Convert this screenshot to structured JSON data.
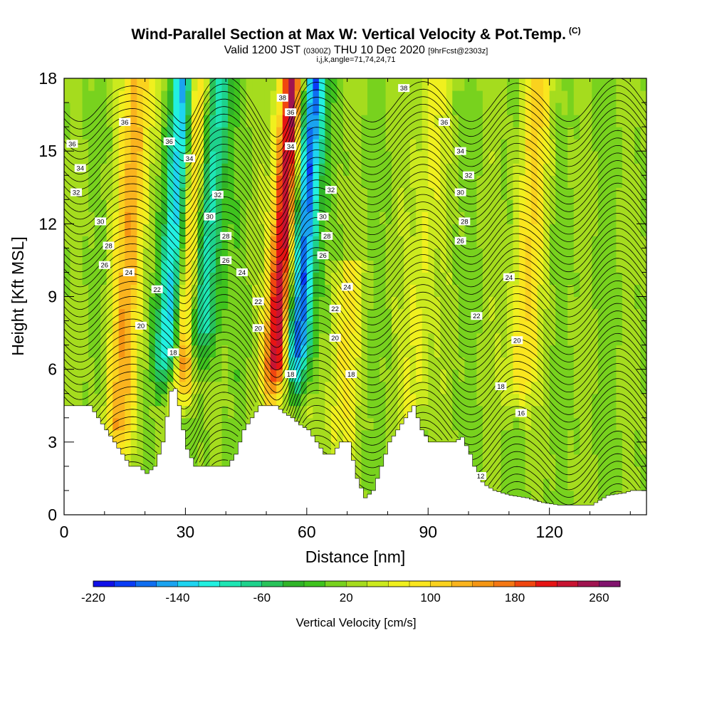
{
  "header": {
    "title": "Wind-Parallel Section at Max W: Vertical Velocity & Pot.Temp.",
    "copyright": "(C)",
    "valid_prefix": "Valid 1200 JST",
    "valid_utc": "(0300Z)",
    "valid_date": "THU 10 Dec 2020",
    "forecast": "[9hrFcst@2303z]",
    "indices": "i,j,k,angle=71,74,24,71"
  },
  "chart_data": {
    "type": "heatmap",
    "xlabel": "Distance [nm]",
    "ylabel": "Height [Kft MSL]",
    "xlim": [
      0,
      144
    ],
    "ylim": [
      0,
      18
    ],
    "x_ticks": [
      0,
      30,
      60,
      90,
      120
    ],
    "y_ticks": [
      0,
      3,
      6,
      9,
      12,
      15,
      18
    ],
    "colorbar": {
      "label": "Vertical Velocity [cm/s]",
      "min": -220,
      "max": 280,
      "step": 20,
      "tick_labels": [
        -220,
        -140,
        -60,
        20,
        100,
        180,
        260
      ],
      "colors": [
        "#1010e8",
        "#0a3cf5",
        "#0f6ef0",
        "#1aa3f0",
        "#1ed4f0",
        "#22f0e0",
        "#1ee6b4",
        "#1ed28c",
        "#28c35a",
        "#30b428",
        "#3fc31e",
        "#78d21e",
        "#a5dc1e",
        "#ccea1e",
        "#f0f01e",
        "#fae61e",
        "#fad21e",
        "#fab41e",
        "#f59614",
        "#f57814",
        "#f0460f",
        "#e61414",
        "#c81432",
        "#a01450",
        "#82146e",
        "#5a1478"
      ]
    },
    "updraft_cores": [
      {
        "x": 15.5,
        "w": 110,
        "top": 18,
        "bottom": 2
      },
      {
        "x": 30.5,
        "w": 190,
        "top": 18,
        "bottom": 4.5
      },
      {
        "x": 53.5,
        "w": 240,
        "top": 18,
        "bottom": 4.5
      },
      {
        "x": 70,
        "w": 60,
        "top": 10,
        "bottom": 2
      },
      {
        "x": 88,
        "w": 50,
        "top": 18,
        "bottom": 3
      },
      {
        "x": 114,
        "w": 80,
        "top": 18,
        "bottom": 4
      }
    ],
    "downdraft_cores": [
      {
        "x": 26.5,
        "w": -180,
        "top": 18,
        "bottom": 5
      },
      {
        "x": 34,
        "w": -150,
        "top": 18,
        "bottom": 6
      },
      {
        "x": 58.5,
        "w": -220,
        "top": 18,
        "bottom": 5
      }
    ],
    "terrain": {
      "x": [
        0,
        4,
        6,
        8,
        10,
        12,
        14,
        16,
        18,
        20,
        22,
        24,
        26,
        27,
        28,
        29,
        30,
        32,
        34,
        36,
        38,
        40,
        42,
        44,
        46,
        48,
        50,
        52,
        54,
        56,
        58,
        60,
        62,
        64,
        66,
        68,
        70,
        72,
        74,
        76,
        78,
        80,
        82,
        84,
        86,
        88,
        90,
        92,
        94,
        96,
        98,
        100,
        102,
        104,
        106,
        110,
        114,
        118,
        122,
        126,
        130,
        134,
        138,
        140,
        144
      ],
      "y": [
        4.5,
        4.5,
        4.5,
        4,
        3.5,
        3,
        2.5,
        2,
        2,
        1.7,
        2,
        3,
        5.1,
        5.2,
        4.5,
        3.5,
        2.7,
        2,
        2,
        2,
        2,
        2,
        2.5,
        3.5,
        4,
        4.5,
        4.5,
        4.5,
        4.2,
        4,
        3.7,
        3.5,
        3,
        2.5,
        2.5,
        3,
        3,
        1.5,
        0.7,
        1,
        2,
        3,
        3.5,
        4,
        4.5,
        3.5,
        3,
        3,
        3,
        3,
        3.2,
        2.5,
        1.5,
        1.2,
        1,
        0.8,
        0.7,
        0.5,
        0.4,
        0.4,
        0.4,
        0.8,
        0.9,
        1,
        1
      ]
    },
    "theta_contours": [
      12,
      14,
      16,
      18,
      20,
      22,
      24,
      26,
      28,
      30,
      32,
      34,
      36,
      38
    ],
    "contour_labels": [
      {
        "text": "38",
        "x": 54,
        "y": 17.2
      },
      {
        "text": "38",
        "x": 84,
        "y": 17.6
      },
      {
        "text": "36",
        "x": 15,
        "y": 16.2
      },
      {
        "text": "36",
        "x": 2,
        "y": 15.3
      },
      {
        "text": "36",
        "x": 26,
        "y": 15.4
      },
      {
        "text": "36",
        "x": 56,
        "y": 16.6
      },
      {
        "text": "36",
        "x": 94,
        "y": 16.2
      },
      {
        "text": "34",
        "x": 4,
        "y": 14.3
      },
      {
        "text": "34",
        "x": 31,
        "y": 14.7
      },
      {
        "text": "34",
        "x": 56,
        "y": 15.2
      },
      {
        "text": "34",
        "x": 98,
        "y": 15.0
      },
      {
        "text": "32",
        "x": 3,
        "y": 13.3
      },
      {
        "text": "32",
        "x": 38,
        "y": 13.2
      },
      {
        "text": "32",
        "x": 66,
        "y": 13.4
      },
      {
        "text": "32",
        "x": 100,
        "y": 14.0
      },
      {
        "text": "30",
        "x": 9,
        "y": 12.1
      },
      {
        "text": "30",
        "x": 36,
        "y": 12.3
      },
      {
        "text": "30",
        "x": 64,
        "y": 12.3
      },
      {
        "text": "30",
        "x": 98,
        "y": 13.3
      },
      {
        "text": "28",
        "x": 11,
        "y": 11.1
      },
      {
        "text": "28",
        "x": 40,
        "y": 11.5
      },
      {
        "text": "28",
        "x": 65,
        "y": 11.5
      },
      {
        "text": "28",
        "x": 99,
        "y": 12.1
      },
      {
        "text": "26",
        "x": 10,
        "y": 10.3
      },
      {
        "text": "26",
        "x": 40,
        "y": 10.5
      },
      {
        "text": "26",
        "x": 64,
        "y": 10.7
      },
      {
        "text": "26",
        "x": 98,
        "y": 11.3
      },
      {
        "text": "24",
        "x": 16,
        "y": 10.0
      },
      {
        "text": "24",
        "x": 44,
        "y": 10.0
      },
      {
        "text": "24",
        "x": 70,
        "y": 9.4
      },
      {
        "text": "24",
        "x": 110,
        "y": 9.8
      },
      {
        "text": "22",
        "x": 23,
        "y": 9.3
      },
      {
        "text": "22",
        "x": 48,
        "y": 8.8
      },
      {
        "text": "22",
        "x": 67,
        "y": 8.5
      },
      {
        "text": "22",
        "x": 102,
        "y": 8.2
      },
      {
        "text": "20",
        "x": 19,
        "y": 7.8
      },
      {
        "text": "20",
        "x": 48,
        "y": 7.7
      },
      {
        "text": "20",
        "x": 67,
        "y": 7.3
      },
      {
        "text": "20",
        "x": 112,
        "y": 7.2
      },
      {
        "text": "18",
        "x": 27,
        "y": 6.7
      },
      {
        "text": "18",
        "x": 56,
        "y": 5.8
      },
      {
        "text": "18",
        "x": 71,
        "y": 5.8
      },
      {
        "text": "18",
        "x": 108,
        "y": 5.3
      },
      {
        "text": "16",
        "x": 113,
        "y": 4.2
      },
      {
        "text": "12",
        "x": 103,
        "y": 1.6
      }
    ]
  }
}
